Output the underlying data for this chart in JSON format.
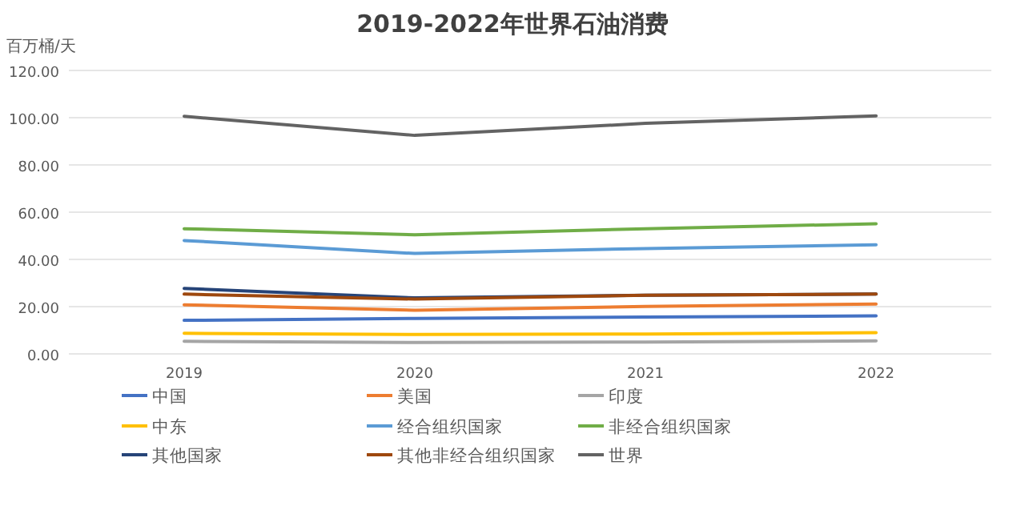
{
  "chart_data": {
    "type": "line",
    "title": "2019-2022年世界石油消费",
    "ylabel": "百万桶/天",
    "categories": [
      "2019",
      "2020",
      "2021",
      "2022"
    ],
    "ylim": [
      0,
      120
    ],
    "yticks": [
      {
        "value": 0,
        "label": "0.00"
      },
      {
        "value": 20,
        "label": "20.00"
      },
      {
        "value": 40,
        "label": "40.00"
      },
      {
        "value": 60,
        "label": "60.00"
      },
      {
        "value": 80,
        "label": "80.00"
      },
      {
        "value": 100,
        "label": "100.00"
      },
      {
        "value": 120,
        "label": "120.00"
      }
    ],
    "grid": "y",
    "legend": "bottom",
    "marker": "none",
    "line_style": "solid",
    "series": [
      {
        "name": "中国",
        "color": "#4472c4",
        "values": [
          14.2,
          15.0,
          15.6,
          16.1
        ]
      },
      {
        "name": "美国",
        "color": "#ed7d31",
        "values": [
          20.8,
          18.5,
          20.1,
          21.1
        ]
      },
      {
        "name": "印度",
        "color": "#a5a5a5",
        "values": [
          5.3,
          4.8,
          5.0,
          5.5
        ]
      },
      {
        "name": "中东",
        "color": "#ffc000",
        "values": [
          8.7,
          8.2,
          8.4,
          9.0
        ]
      },
      {
        "name": "经合组织国家",
        "color": "#5b9bd5",
        "values": [
          48.0,
          42.5,
          44.6,
          46.2
        ]
      },
      {
        "name": "非经合组织国家",
        "color": "#70ad47",
        "values": [
          53.0,
          50.4,
          53.0,
          55.1
        ]
      },
      {
        "name": "其他国家",
        "color": "#264478",
        "values": [
          27.7,
          23.7,
          24.8,
          25.3
        ]
      },
      {
        "name": "其他非经合组织国家",
        "color": "#9e480e",
        "values": [
          25.3,
          23.2,
          24.8,
          25.3
        ]
      },
      {
        "name": "世界",
        "color": "#636363",
        "values": [
          100.6,
          92.5,
          97.6,
          100.8
        ]
      }
    ]
  }
}
